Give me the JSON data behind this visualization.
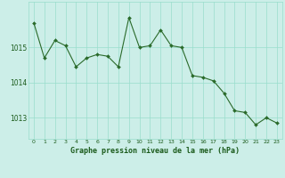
{
  "x": [
    0,
    1,
    2,
    3,
    4,
    5,
    6,
    7,
    8,
    9,
    10,
    11,
    12,
    13,
    14,
    15,
    16,
    17,
    18,
    19,
    20,
    21,
    22,
    23
  ],
  "y": [
    1015.7,
    1014.7,
    1015.2,
    1015.05,
    1014.45,
    1014.7,
    1014.8,
    1014.75,
    1014.45,
    1015.85,
    1015.0,
    1015.05,
    1015.5,
    1015.05,
    1015.0,
    1014.2,
    1014.15,
    1014.05,
    1013.7,
    1013.2,
    1013.15,
    1012.8,
    1013.0,
    1012.85
  ],
  "line_color": "#2a6a2a",
  "marker_color": "#2a6a2a",
  "bg_color": "#cceee8",
  "grid_color": "#99ddcc",
  "xlabel": "Graphe pression niveau de la mer (hPa)",
  "xlabel_color": "#1a5a1a",
  "tick_color": "#1a5a1a",
  "bottom_bar_color": "#336633",
  "ylim": [
    1012.4,
    1016.3
  ],
  "yticks": [
    1013,
    1014,
    1015
  ],
  "xlim": [
    -0.5,
    23.5
  ],
  "figsize": [
    3.2,
    2.0
  ],
  "dpi": 100
}
